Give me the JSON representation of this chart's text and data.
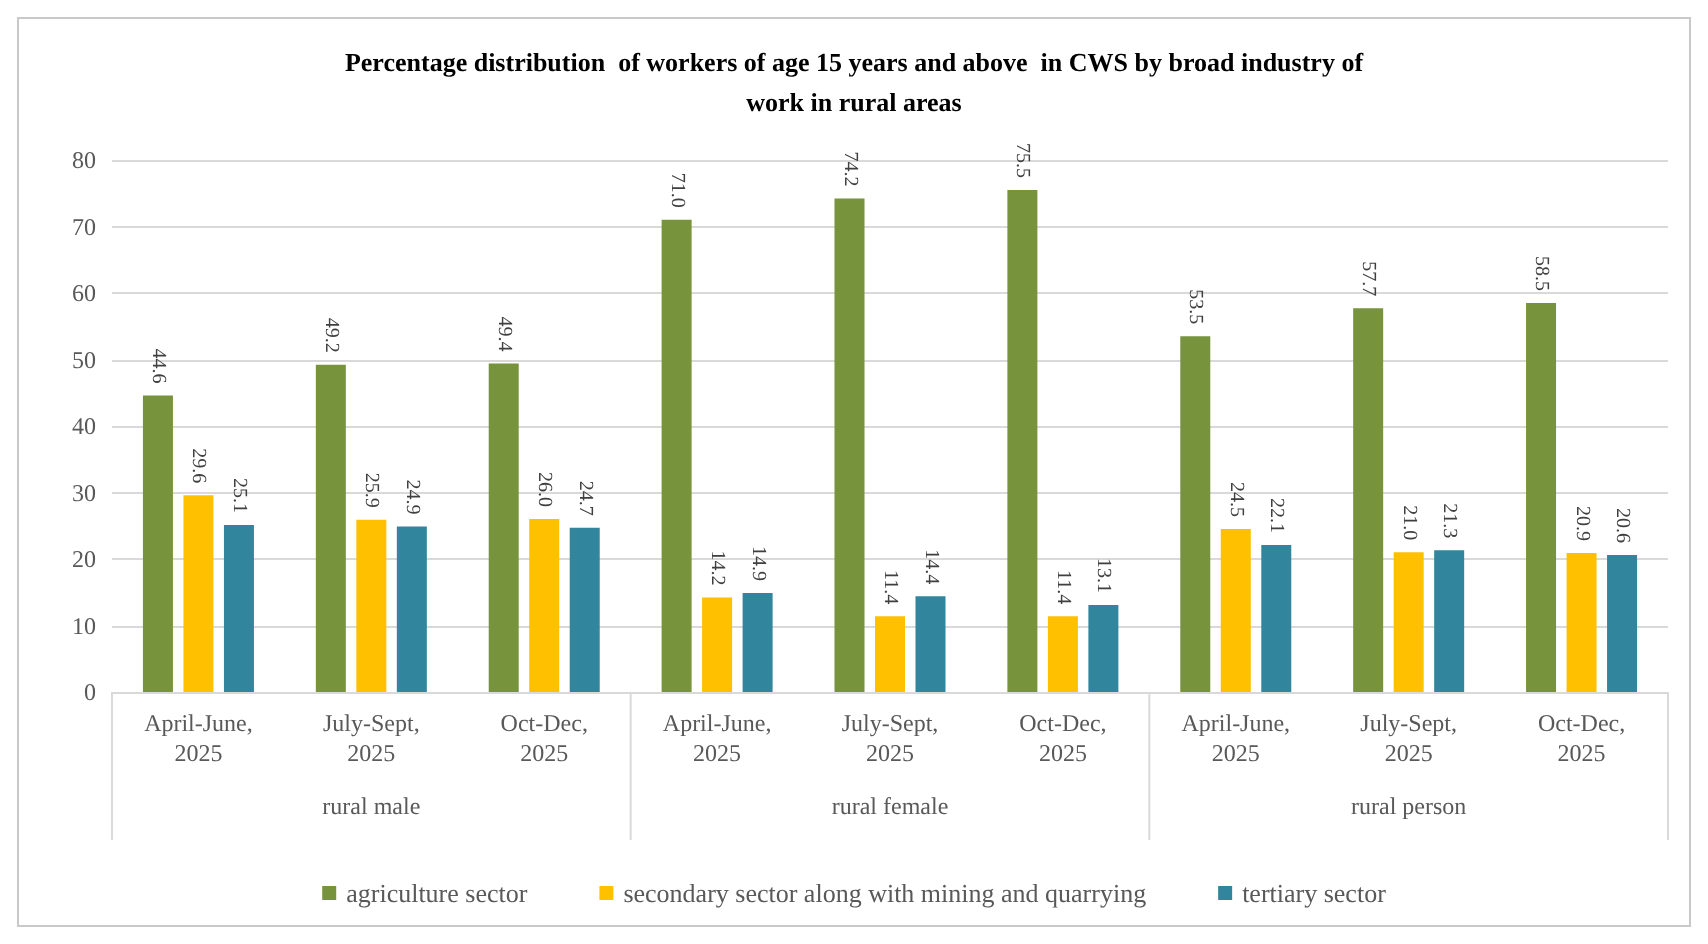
{
  "chart_data": {
    "type": "bar",
    "title": "Percentage distribution  of workers of age 15 years and above  in CWS by broad industry of\nwork in rural areas",
    "categories": [
      "April-June,\n2025",
      "July-Sept,\n2025",
      "Oct-Dec,\n2025",
      "April-June,\n2025",
      "July-Sept,\n2025",
      "Oct-Dec,\n2025",
      "April-June,\n2025",
      "July-Sept,\n2025",
      "Oct-Dec,\n2025"
    ],
    "series": [
      {
        "name": "agriculture sector",
        "color": "#77933c",
        "values": [
          44.6,
          49.2,
          49.4,
          71.0,
          74.2,
          75.5,
          53.5,
          57.7,
          58.5
        ],
        "value_labels": [
          "44.6",
          "49.2",
          "49.4",
          "71.0",
          "74.2",
          "75.5",
          "53.5",
          "57.7",
          "58.5"
        ]
      },
      {
        "name": "secondary sector along with mining and quarrying",
        "color": "#ffc000",
        "values": [
          29.6,
          25.9,
          26.0,
          14.2,
          11.4,
          11.4,
          24.5,
          21.0,
          20.9
        ],
        "value_labels": [
          "29.6",
          "25.9",
          "26.0",
          "14.2",
          "11.4",
          "11.4",
          "24.5",
          "21.0",
          "20.9"
        ]
      },
      {
        "name": "tertiary sector",
        "color": "#31859c",
        "values": [
          25.1,
          24.9,
          24.7,
          14.9,
          14.4,
          13.1,
          22.1,
          21.3,
          20.6
        ],
        "value_labels": [
          "25.1",
          "24.9",
          "24.7",
          "14.9",
          "14.4",
          "13.1",
          "22.1",
          "21.3",
          "20.6"
        ]
      }
    ],
    "annotations": [
      "rural male",
      "rural female",
      "rural person"
    ],
    "ylim": [
      0,
      80
    ],
    "yticks": [
      0,
      10,
      20,
      30,
      40,
      50,
      60,
      70,
      80
    ],
    "grid": "y",
    "legend": "bottom"
  }
}
